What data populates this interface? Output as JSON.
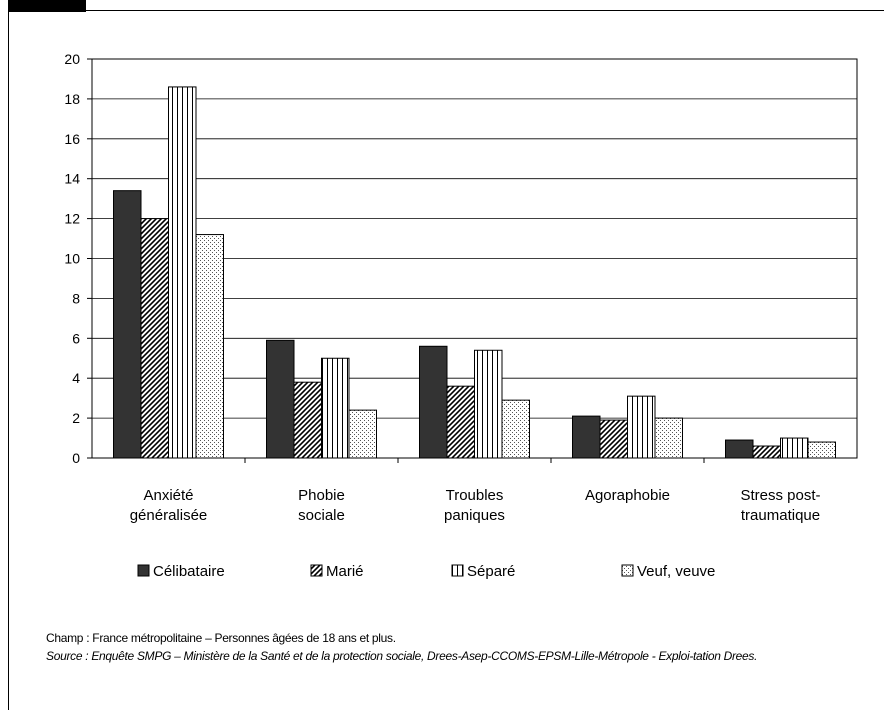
{
  "chart_data": {
    "type": "bar",
    "categories": [
      [
        "Anxiété",
        "généralisée"
      ],
      [
        "Phobie",
        "sociale"
      ],
      [
        "Troubles",
        "paniques"
      ],
      [
        "Agoraphobie"
      ],
      [
        "Stress post-",
        "traumatique"
      ]
    ],
    "series": [
      {
        "name": "Célibataire",
        "values": [
          13.4,
          5.9,
          5.6,
          2.1,
          0.9
        ],
        "pattern": "solid"
      },
      {
        "name": "Marié",
        "values": [
          12.0,
          3.8,
          3.6,
          1.9,
          0.6
        ],
        "pattern": "diagonal"
      },
      {
        "name": "Séparé",
        "values": [
          18.6,
          5.0,
          5.4,
          3.1,
          1.0
        ],
        "pattern": "vertical"
      },
      {
        "name": "Veuf, veuve",
        "values": [
          11.2,
          2.4,
          2.9,
          2.0,
          0.8
        ],
        "pattern": "dotted"
      }
    ],
    "ylim": [
      0,
      20
    ],
    "yticks": [
      "0",
      "2",
      "4",
      "6",
      "8",
      "10",
      "12",
      "14",
      "16",
      "18",
      "20"
    ],
    "grid": true,
    "legend": "bottom",
    "colors": {
      "solid": "#333333",
      "bar_stroke": "#000000",
      "grid": "#000000"
    }
  },
  "notes": {
    "champ": "Champ : France métropolitaine – Personnes âgées de 18 ans et plus.",
    "source": "Source : Enquête SMPG – Ministère de la Santé et de la protection sociale, Drees-Asep-CCOMS-EPSM-Lille-Métropole - Exploi-tation Drees."
  }
}
